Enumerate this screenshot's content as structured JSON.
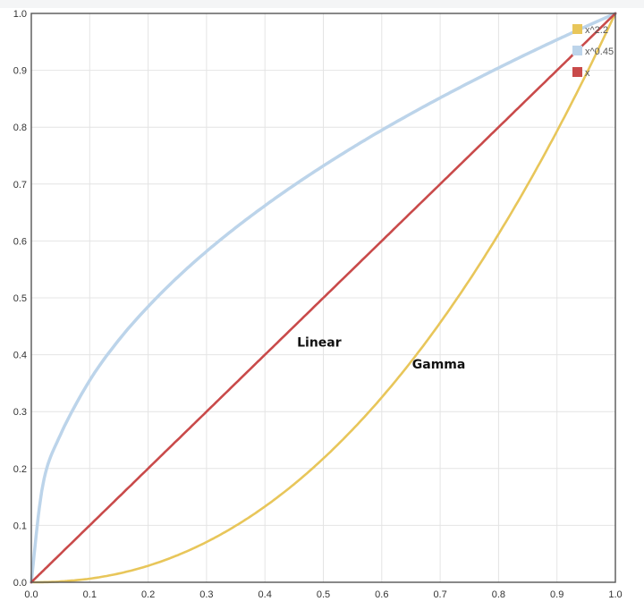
{
  "chart_data": {
    "type": "line",
    "title": "",
    "xlabel": "",
    "ylabel": "",
    "xlim": [
      0,
      1
    ],
    "ylim": [
      0,
      1
    ],
    "grid": true,
    "legend_position": "top-right",
    "x_ticks": [
      "0.0",
      "0.1",
      "0.2",
      "0.3",
      "0.4",
      "0.5",
      "0.6",
      "0.7",
      "0.8",
      "0.9",
      "1.0"
    ],
    "y_ticks": [
      "0.0",
      "0.1",
      "0.2",
      "0.3",
      "0.4",
      "0.5",
      "0.6",
      "0.7",
      "0.8",
      "0.9",
      "1.0"
    ],
    "x": [
      0,
      0.02,
      0.05,
      0.1,
      0.15,
      0.2,
      0.25,
      0.3,
      0.35,
      0.4,
      0.45,
      0.5,
      0.55,
      0.6,
      0.65,
      0.7,
      0.75,
      0.8,
      0.85,
      0.9,
      0.95,
      1.0
    ],
    "series": [
      {
        "name": "x^2.2",
        "color": "#e8c65a",
        "values": [
          0,
          0.0002,
          0.0014,
          0.0063,
          0.0154,
          0.029,
          0.0474,
          0.0707,
          0.0993,
          0.1332,
          0.1725,
          0.2176,
          0.2684,
          0.325,
          0.3876,
          0.4563,
          0.5311,
          0.6121,
          0.6993,
          0.793,
          0.8932,
          1.0
        ]
      },
      {
        "name": "x^0.45",
        "color": "#bcd4ea",
        "values": [
          0,
          0.1724,
          0.2596,
          0.3548,
          0.4261,
          0.4846,
          0.5359,
          0.5817,
          0.6234,
          0.662,
          0.6981,
          0.732,
          0.7642,
          0.7947,
          0.8237,
          0.8516,
          0.8784,
          0.9043,
          0.9294,
          0.9537,
          0.9772,
          1.0
        ]
      },
      {
        "name": "x",
        "color": "#c94a4a",
        "values": [
          0,
          0.02,
          0.05,
          0.1,
          0.15,
          0.2,
          0.25,
          0.3,
          0.35,
          0.4,
          0.45,
          0.5,
          0.55,
          0.6,
          0.65,
          0.7,
          0.75,
          0.8,
          0.85,
          0.9,
          0.95,
          1.0
        ]
      }
    ],
    "annotations": [
      {
        "text": "Linear",
        "x": 0.455,
        "y": 0.414
      },
      {
        "text": "Gamma",
        "x": 0.652,
        "y": 0.376
      }
    ]
  }
}
